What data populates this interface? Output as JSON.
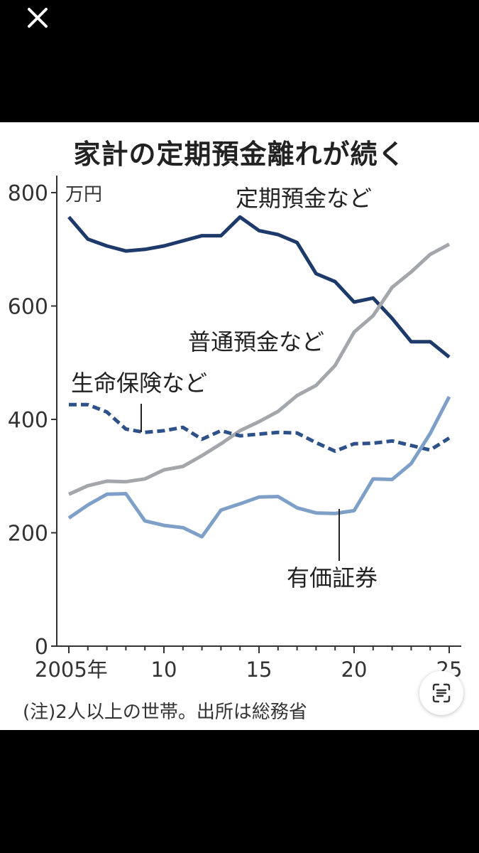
{
  "ui": {
    "close_icon": "close-icon",
    "lens_icon": "scan-text-icon"
  },
  "chart_data": {
    "type": "line",
    "title": "家計の定期預金離れが続く",
    "unit": "万円",
    "note": "(注)2人以上の世帯。出所は総務省",
    "xlim": [
      2005,
      2025
    ],
    "ylim": [
      0,
      800
    ],
    "yticks": [
      0,
      200,
      400,
      600,
      800
    ],
    "xtick_labels": [
      {
        "x": 2005,
        "label": "2005年"
      },
      {
        "x": 2010,
        "label": "10"
      },
      {
        "x": 2015,
        "label": "15"
      },
      {
        "x": 2020,
        "label": "20"
      },
      {
        "x": 2025,
        "label": "25"
      }
    ],
    "x": [
      2005,
      2006,
      2007,
      2008,
      2009,
      2010,
      2011,
      2012,
      2013,
      2014,
      2015,
      2016,
      2017,
      2018,
      2019,
      2020,
      2021,
      2022,
      2023,
      2024,
      2025
    ],
    "series": [
      {
        "name": "定期預金など",
        "color": "#1e3a6b",
        "dashed": false,
        "values": [
          757,
          718,
          706,
          697,
          700,
          706,
          715,
          724,
          724,
          757,
          733,
          726,
          712,
          657,
          643,
          607,
          614,
          578,
          537,
          537,
          510
        ]
      },
      {
        "name": "普通預金など",
        "color": "#a3a6ab",
        "dashed": false,
        "values": [
          268,
          283,
          291,
          290,
          295,
          311,
          317,
          336,
          357,
          380,
          396,
          414,
          442,
          460,
          495,
          554,
          583,
          633,
          660,
          691,
          709
        ]
      },
      {
        "name": "生命保険など",
        "color": "#2d5188",
        "dashed": true,
        "values": [
          426,
          426,
          413,
          383,
          377,
          380,
          386,
          365,
          380,
          371,
          374,
          377,
          376,
          359,
          344,
          357,
          358,
          362,
          354,
          346,
          367
        ]
      },
      {
        "name": "有価証券",
        "color": "#7ea0c8",
        "dashed": false,
        "values": [
          226,
          249,
          268,
          269,
          221,
          213,
          209,
          193,
          240,
          251,
          263,
          264,
          244,
          235,
          234,
          239,
          295,
          294,
          322,
          375,
          440
        ]
      }
    ]
  }
}
